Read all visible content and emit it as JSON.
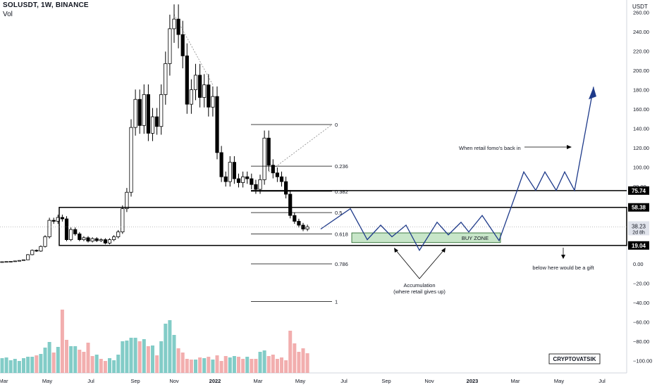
{
  "header": {
    "title": "SOLUSDT, 1W, BINANCE",
    "volume_label": "Vol"
  },
  "chart_data": {
    "type": "candlestick",
    "symbol": "SOLUSDT",
    "exchange": "BINANCE",
    "interval": "1W",
    "y_unit": "USDT",
    "ylim": [
      -110,
      265
    ],
    "y_ticks": [
      -100,
      -80,
      -60,
      -40,
      -20,
      0,
      20,
      40,
      60,
      80,
      100,
      120,
      140,
      160,
      180,
      200,
      220,
      240,
      260
    ],
    "y_tick_labels": [
      "−100.00",
      "−80.00",
      "−60.00",
      "−40.00",
      "−20.00",
      "0.00",
      "20.00",
      "40.00",
      "60.00",
      "80.00",
      "100.00",
      "120.00",
      "140.00",
      "160.00",
      "180.00",
      "200.00",
      "220.00",
      "240.00",
      "260.00"
    ],
    "x_labels": [
      "Mar",
      "May",
      "Jul",
      "Sep",
      "Nov",
      "2022",
      "Mar",
      "May",
      "Jul",
      "Sep",
      "Nov",
      "2023",
      "Mar",
      "May",
      "Jul"
    ],
    "candles": [
      [
        1.6,
        2.2
      ],
      [
        2.2,
        2.4
      ],
      [
        2.4,
        2.6
      ],
      [
        2.6,
        3.0
      ],
      [
        3.0,
        3.5
      ],
      [
        3.5,
        4.2
      ],
      [
        4.2,
        9.5
      ],
      [
        9.5,
        14.0
      ],
      [
        14.0,
        13.2
      ],
      [
        13.2,
        18.0
      ],
      [
        18.0,
        28.0
      ],
      [
        28.0,
        45.0
      ],
      [
        45.0,
        44.0
      ],
      [
        44.0,
        48.0
      ],
      [
        48.0,
        46.5
      ],
      [
        46.5,
        25.0
      ],
      [
        25.0,
        35.5
      ],
      [
        35.5,
        31.0
      ],
      [
        31.0,
        25.0
      ],
      [
        25.0,
        27.0
      ],
      [
        27.0,
        23.5
      ],
      [
        23.5,
        26.0
      ],
      [
        26.0,
        24.0
      ],
      [
        24.0,
        25.0
      ],
      [
        25.0,
        21.5
      ],
      [
        21.5,
        25.0
      ],
      [
        25.0,
        28.0
      ],
      [
        28.0,
        33.0
      ],
      [
        33.0,
        57.0
      ],
      [
        57.0,
        74.0
      ],
      [
        74.0,
        141.0
      ],
      [
        141.0,
        170.0
      ],
      [
        170.0,
        143.0
      ],
      [
        143.0,
        175.0
      ],
      [
        175.0,
        135.0
      ],
      [
        135.0,
        152.0
      ],
      [
        152.0,
        142.0
      ],
      [
        142.0,
        175.0
      ],
      [
        175.0,
        207.0
      ],
      [
        207.0,
        243.0
      ],
      [
        243.0,
        253.0
      ],
      [
        253.0,
        237.0
      ],
      [
        237.0,
        215.0
      ],
      [
        215.0,
        165.0
      ],
      [
        165.0,
        180.0
      ],
      [
        180.0,
        195.0
      ],
      [
        195.0,
        172.0
      ],
      [
        172.0,
        185.0
      ],
      [
        185.0,
        162.0
      ],
      [
        162.0,
        173.0
      ],
      [
        173.0,
        115.0
      ],
      [
        115.0,
        90.0
      ],
      [
        90.0,
        85.0
      ],
      [
        85.0,
        105.0
      ],
      [
        105.0,
        88.0
      ],
      [
        88.0,
        84.0
      ],
      [
        84.0,
        90.0
      ],
      [
        90.0,
        88.0
      ],
      [
        88.0,
        82.0
      ],
      [
        82.0,
        77.0
      ],
      [
        77.0,
        87.0
      ],
      [
        87.0,
        130.0
      ],
      [
        130.0,
        102.0
      ],
      [
        102.0,
        94.0
      ],
      [
        94.0,
        90.0
      ],
      [
        90.0,
        85.0
      ],
      [
        85.0,
        72.0
      ],
      [
        72.0,
        50.0
      ],
      [
        50.0,
        44.0
      ],
      [
        44.0,
        40.0
      ],
      [
        40.0,
        36.0
      ],
      [
        36.0,
        38.23
      ]
    ],
    "volume": [
      [
        21,
        "up"
      ],
      [
        22,
        "up"
      ],
      [
        18,
        "up"
      ],
      [
        20,
        "up"
      ],
      [
        17,
        "up"
      ],
      [
        21,
        "up"
      ],
      [
        23,
        "up"
      ],
      [
        23,
        "up"
      ],
      [
        25,
        "down"
      ],
      [
        27,
        "up"
      ],
      [
        36,
        "up"
      ],
      [
        44,
        "up"
      ],
      [
        29,
        "down"
      ],
      [
        37,
        "up"
      ],
      [
        90,
        "down"
      ],
      [
        47,
        "down"
      ],
      [
        38,
        "up"
      ],
      [
        38,
        "up"
      ],
      [
        33,
        "down"
      ],
      [
        30,
        "down"
      ],
      [
        43,
        "down"
      ],
      [
        24,
        "down"
      ],
      [
        26,
        "up"
      ],
      [
        20,
        "down"
      ],
      [
        17,
        "down"
      ],
      [
        21,
        "up"
      ],
      [
        18,
        "up"
      ],
      [
        26,
        "up"
      ],
      [
        45,
        "up"
      ],
      [
        46,
        "up"
      ],
      [
        50,
        "up"
      ],
      [
        50,
        "up"
      ],
      [
        45,
        "down"
      ],
      [
        48,
        "up"
      ],
      [
        38,
        "down"
      ],
      [
        39,
        "up"
      ],
      [
        25,
        "down"
      ],
      [
        45,
        "up"
      ],
      [
        70,
        "up"
      ],
      [
        75,
        "up"
      ],
      [
        54,
        "up"
      ],
      [
        35,
        "down"
      ],
      [
        29,
        "down"
      ],
      [
        20,
        "down"
      ],
      [
        19,
        "down"
      ],
      [
        19,
        "up"
      ],
      [
        22,
        "down"
      ],
      [
        21,
        "up"
      ],
      [
        23,
        "down"
      ],
      [
        19,
        "up"
      ],
      [
        25,
        "down"
      ],
      [
        17,
        "down"
      ],
      [
        24,
        "down"
      ],
      [
        22,
        "up"
      ],
      [
        24,
        "up"
      ],
      [
        23,
        "down"
      ],
      [
        20,
        "down"
      ],
      [
        23,
        "up"
      ],
      [
        20,
        "down"
      ],
      [
        20,
        "down"
      ],
      [
        30,
        "up"
      ],
      [
        32,
        "up"
      ],
      [
        24,
        "down"
      ],
      [
        26,
        "down"
      ],
      [
        20,
        "down"
      ],
      [
        22,
        "down"
      ],
      [
        18,
        "down"
      ],
      [
        60,
        "down"
      ],
      [
        42,
        "down"
      ],
      [
        30,
        "down"
      ],
      [
        35,
        "down"
      ],
      [
        28,
        "down"
      ]
    ],
    "horizontal_levels": [
      {
        "value": 75.74,
        "label": "75.74"
      },
      {
        "value": 58.38,
        "label": "58.38"
      },
      {
        "value": 19.04,
        "label": "19.04"
      }
    ],
    "last_price": {
      "value": "38.23",
      "countdown": "2d 8h"
    },
    "fib_levels": [
      {
        "level": "0",
        "value": 144
      },
      {
        "level": "0.236",
        "value": 101
      },
      {
        "level": "0.382",
        "value": 75
      },
      {
        "level": "0.5",
        "value": 53
      },
      {
        "level": "0.618",
        "value": 31
      },
      {
        "level": "0.786",
        "value": 0
      },
      {
        "level": "1",
        "value": -39
      }
    ],
    "buy_zone_label": "BUY ZONE",
    "annotations": {
      "fomo": "When retail fomo's back in",
      "accumulation_line1": "Accumulation",
      "accumulation_line2": "(where retail gives up)",
      "gift": "below here would be a gift"
    },
    "watermark": "CRYPTOVATSIK",
    "colors": {
      "up": "#ffffff",
      "down": "#000000",
      "vol_up": "#6cc3bd",
      "vol_down": "#f0a0a0",
      "projection": "#1e3a8a",
      "buy_zone": "#c8e6c9"
    }
  }
}
